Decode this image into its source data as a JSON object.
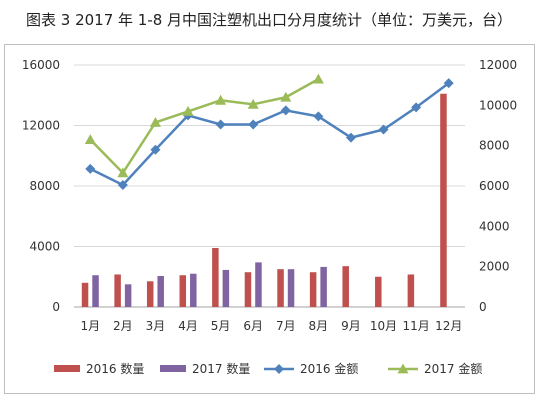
{
  "title": "图表 3    2017 年 1-8 月中国注塑机出口分月度统计（单位：万美元，台）",
  "chart_data": {
    "type": "bar",
    "title": "图表 3    2017 年 1-8 月中国注塑机出口分月度统计（单位：万美元，台）",
    "categories": [
      "1月",
      "2月",
      "3月",
      "4月",
      "5月",
      "6月",
      "7月",
      "8月",
      "9月",
      "10月",
      "11月",
      "12月"
    ],
    "left_axis": {
      "ylim": [
        0,
        16000
      ],
      "ticks": [
        "0",
        "4000",
        "8000",
        "12000",
        "16000"
      ]
    },
    "right_axis": {
      "ylim": [
        0,
        12000
      ],
      "ticks": [
        "0",
        "2000",
        "4000",
        "6000",
        "8000",
        "10000",
        "12000"
      ]
    },
    "grid": true,
    "legend_position": "bottom",
    "series": [
      {
        "name": "2016 数量",
        "kind": "bar",
        "axis": "left",
        "color": "#c0504d",
        "values": [
          1600,
          2150,
          1700,
          2100,
          3900,
          2300,
          2500,
          2300,
          2700,
          2000,
          2150,
          14100
        ]
      },
      {
        "name": "2017 数量",
        "kind": "bar",
        "axis": "left",
        "color": "#8064a2",
        "values": [
          2100,
          1500,
          2050,
          2200,
          2450,
          2950,
          2500,
          2650,
          null,
          null,
          null,
          null
        ]
      },
      {
        "name": "2016 金额",
        "kind": "line",
        "axis": "right",
        "color": "#4f81bd",
        "marker": "diamond",
        "values": [
          6850,
          6050,
          7800,
          9500,
          9050,
          9050,
          9750,
          9450,
          8400,
          8800,
          9900,
          11100
        ]
      },
      {
        "name": "2017 金额",
        "kind": "line",
        "axis": "right",
        "color": "#9bbb59",
        "marker": "triangle",
        "values": [
          8300,
          6650,
          9150,
          9700,
          10250,
          10050,
          10400,
          11300,
          null,
          null,
          null,
          null
        ]
      }
    ]
  }
}
